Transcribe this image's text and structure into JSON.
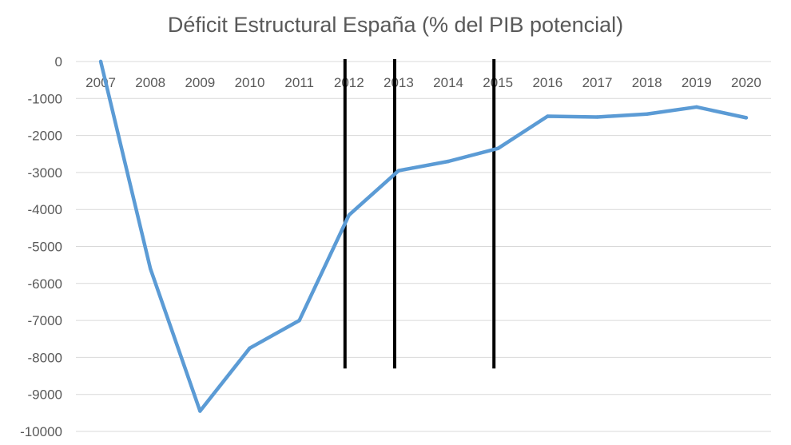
{
  "chart_data": {
    "type": "line",
    "title": "Déficit Estructural España (% del PIB potencial)",
    "xlabel": "",
    "ylabel": "",
    "categories": [
      "2007",
      "2008",
      "2009",
      "2010",
      "2011",
      "2012",
      "2013",
      "2014",
      "2015",
      "2016",
      "2017",
      "2018",
      "2019",
      "2020"
    ],
    "series": [
      {
        "name": "Déficit estructural",
        "values": [
          0,
          -5600,
          -9450,
          -7750,
          -7000,
          -4150,
          -2950,
          -2700,
          -2350,
          -1480,
          -1500,
          -1420,
          -1230,
          -1520
        ]
      }
    ],
    "ylim": [
      -10000,
      0
    ],
    "yticks": [
      0,
      -1000,
      -2000,
      -3000,
      -4000,
      -5000,
      -6000,
      -7000,
      -8000,
      -9000,
      -10000
    ],
    "x_axis_position": "top",
    "grid": true,
    "legend": "none",
    "line_color": "#5b9bd5",
    "marker_line_color": "#000000",
    "vertical_markers": [
      {
        "year": "2012",
        "from": 0,
        "to": -8300
      },
      {
        "year": "2013",
        "from": 0,
        "to": -8300
      },
      {
        "year": "2015",
        "from": 0,
        "to": -8300
      }
    ]
  }
}
